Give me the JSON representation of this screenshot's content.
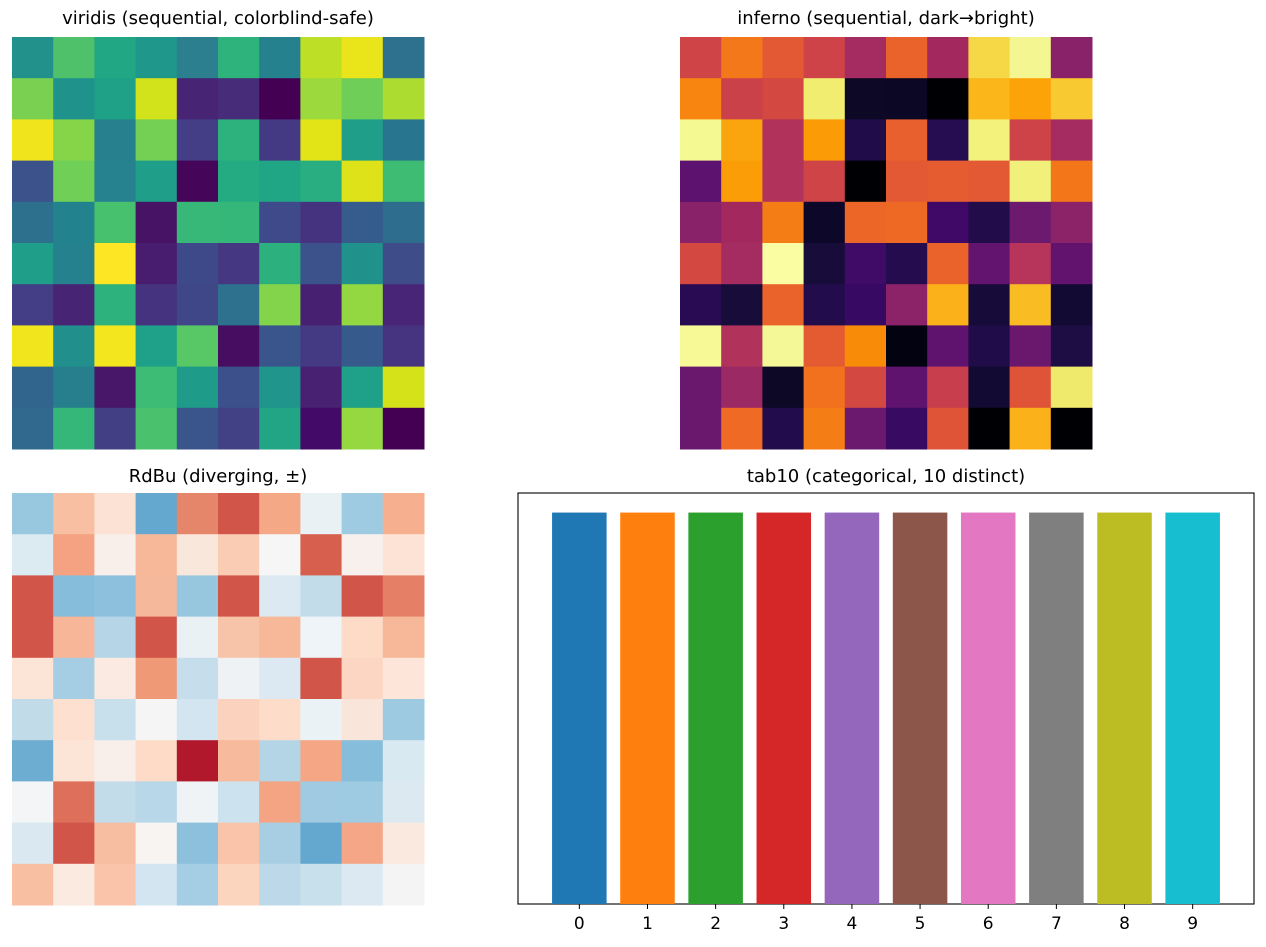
{
  "chart_data": [
    {
      "type": "heatmap",
      "title": "viridis (sequential, colorblind-safe)",
      "colormap": "viridis",
      "rows": [
        [
          "#22918c",
          "#4fc16b",
          "#22a785",
          "#1f988b",
          "#2c7f8e",
          "#2db37b",
          "#26818e",
          "#bddf26",
          "#eae51a",
          "#2d718e"
        ],
        [
          "#7ad151",
          "#20928c",
          "#1fa188",
          "#d2e21b",
          "#482475",
          "#472c7a",
          "#440154",
          "#9bd93c",
          "#6ece58",
          "#addc30"
        ],
        [
          "#f0e51c",
          "#86d549",
          "#27808e",
          "#74d055",
          "#433e85",
          "#2db27d",
          "#443983",
          "#e2e418",
          "#1f9e89",
          "#27758e"
        ],
        [
          "#3b528b",
          "#70cf57",
          "#26828e",
          "#1f9e89",
          "#450559",
          "#25ab82",
          "#21a685",
          "#28ae80",
          "#dde318",
          "#3fbc73"
        ],
        [
          "#2d708e",
          "#22838e",
          "#48c16e",
          "#471365",
          "#37b878",
          "#35b779",
          "#3e4a89",
          "#46337f",
          "#365c8d",
          "#2e6d8e"
        ],
        [
          "#1f9e89",
          "#26818e",
          "#fde725",
          "#481c6e",
          "#3e4989",
          "#453781",
          "#2cb17e",
          "#3b528b",
          "#21918c",
          "#3e4c8a"
        ],
        [
          "#433e85",
          "#482475",
          "#2db27d",
          "#46337f",
          "#3f4788",
          "#2d718e",
          "#84d44b",
          "#482071",
          "#93d741",
          "#482576"
        ],
        [
          "#f1e51d",
          "#21908d",
          "#f4e61e",
          "#1fa088",
          "#58c765",
          "#470d60",
          "#3a548c",
          "#443a83",
          "#375a8c",
          "#463480"
        ],
        [
          "#32658e",
          "#277f8e",
          "#481769",
          "#3cbc74",
          "#1e9c89",
          "#3c508b",
          "#1f958b",
          "#482173",
          "#1fa088",
          "#d5e21a"
        ],
        [
          "#31688e",
          "#35b779",
          "#423f85",
          "#4ac16d",
          "#3a548c",
          "#424186",
          "#21a585",
          "#440a68",
          "#95d840",
          "#440154"
        ]
      ]
    },
    {
      "type": "heatmap",
      "title": "inferno (sequential, dark→bright)",
      "colormap": "inferno",
      "rows": [
        [
          "#cf4446",
          "#f37819",
          "#e35933",
          "#cd4347",
          "#a52c60",
          "#ea632a",
          "#a3285e",
          "#f6d746",
          "#f4f691",
          "#8a226a"
        ],
        [
          "#f8850f",
          "#cb4149",
          "#d44842",
          "#f1ed71",
          "#0c0826",
          "#0b0724",
          "#000004",
          "#fbb61a",
          "#fca309",
          "#f9c932"
        ],
        [
          "#f5f992",
          "#faa50d",
          "#b1325a",
          "#fb9b06",
          "#210c4a",
          "#e8602d",
          "#260c51",
          "#f2f27d",
          "#cd4347",
          "#a52c60"
        ],
        [
          "#5c126e",
          "#fb9d07",
          "#b1325a",
          "#cf4446",
          "#000004",
          "#e35933",
          "#e55c30",
          "#e35933",
          "#f0f07b",
          "#f37719"
        ],
        [
          "#8a226a",
          "#a3285e",
          "#f57d15",
          "#0d0829",
          "#ec6628",
          "#ee6a24",
          "#410967",
          "#220c4a",
          "#6c1a6e",
          "#8c2369"
        ],
        [
          "#d44842",
          "#a52c60",
          "#fbfda2",
          "#170c3a",
          "#400a67",
          "#240c4e",
          "#ea632a",
          "#62146e",
          "#b7355b",
          "#61136e"
        ],
        [
          "#280b53",
          "#170c3a",
          "#ea632a",
          "#230c4c",
          "#380962",
          "#8c2369",
          "#fbb21a",
          "#160b39",
          "#f9bd23",
          "#130a34"
        ],
        [
          "#f6f995",
          "#b1325a",
          "#f4f896",
          "#e45a31",
          "#f88c09",
          "#030211",
          "#5f136e",
          "#1f0c48",
          "#6a176e",
          "#1e0c45"
        ],
        [
          "#6a176e",
          "#9b2964",
          "#0c0826",
          "#f1711f",
          "#d44842",
          "#5f136e",
          "#c83e4d",
          "#120a32",
          "#df5337",
          "#efe96c"
        ],
        [
          "#6a176e",
          "#ef6a24",
          "#230c4c",
          "#f57d15",
          "#6b196e",
          "#380a62",
          "#df5337",
          "#000004",
          "#fbb21a",
          "#000004"
        ]
      ]
    },
    {
      "type": "heatmap",
      "title": "RdBu (diverging, ±)",
      "colormap": "RdBu",
      "rows": [
        [
          "#98c8e0",
          "#f8bfa3",
          "#fbe2d4",
          "#65a8cf",
          "#e58569",
          "#d15549",
          "#f4a886",
          "#eaf1f5",
          "#9ecbe1",
          "#f6af8f"
        ],
        [
          "#dceaf2",
          "#f4a282",
          "#f8efeb",
          "#f7b799",
          "#fae7dc",
          "#fbccb4",
          "#f6f6f6",
          "#d6604d",
          "#f8f0ec",
          "#fce3d6"
        ],
        [
          "#d15549",
          "#86bdda",
          "#8cc0dc",
          "#f6b89b",
          "#97c7df",
          "#d15549",
          "#dce9f2",
          "#c3dcea",
          "#d15549",
          "#e58066"
        ],
        [
          "#d15549",
          "#f7b698",
          "#b6d5e7",
          "#d15549",
          "#e9f1f5",
          "#f8c4a9",
          "#f7b799",
          "#eef4f7",
          "#fddbc7",
          "#f7b799"
        ],
        [
          "#fce4d7",
          "#a5cde3",
          "#fbeae1",
          "#ef9977",
          "#c6deec",
          "#eef2f5",
          "#dce9f2",
          "#d15549",
          "#fcd6c2",
          "#fde6d9"
        ],
        [
          "#c1dbe9",
          "#fde0cf",
          "#c8dfec",
          "#f5f5f5",
          "#d2e5f0",
          "#fbd2bd",
          "#fddcca",
          "#ebf2f5",
          "#fae5da",
          "#9dcae1"
        ],
        [
          "#6eadd2",
          "#fce4d7",
          "#f8efeb",
          "#fddbc7",
          "#b2182b",
          "#f7ba9c",
          "#b4d5e6",
          "#f4a685",
          "#86bdda",
          "#d9e9f1"
        ],
        [
          "#f3f5f6",
          "#de6f5b",
          "#c3dcea",
          "#b8d7e8",
          "#eff3f5",
          "#cce2ee",
          "#f4a483",
          "#9fcae1",
          "#9ecbe1",
          "#dde9f1"
        ],
        [
          "#d9e8f1",
          "#d15549",
          "#f8bea2",
          "#f7f4f2",
          "#8cc0dc",
          "#f9c4a9",
          "#a8cee3",
          "#65a8cf",
          "#f4a687",
          "#fae9df"
        ],
        [
          "#f8bfa3",
          "#fbeae0",
          "#f9c4a9",
          "#d3e5f0",
          "#a5cde3",
          "#fcd5bf",
          "#bcd8e9",
          "#c8dfec",
          "#dce9f2",
          "#f4f4f4"
        ]
      ]
    },
    {
      "type": "bar",
      "title": "tab10 (categorical, 10 distinct)",
      "categories": [
        "0",
        "1",
        "2",
        "3",
        "4",
        "5",
        "6",
        "7",
        "8",
        "9"
      ],
      "values": [
        1,
        1,
        1,
        1,
        1,
        1,
        1,
        1,
        1,
        1
      ],
      "colors": [
        "#1f77b4",
        "#ff7f0e",
        "#2ca02c",
        "#d62728",
        "#9467bd",
        "#8c564b",
        "#e377c2",
        "#7f7f7f",
        "#bcbd22",
        "#17becf"
      ],
      "ylim": [
        0,
        1.05
      ],
      "xlim": [
        -0.9,
        9.9
      ]
    }
  ]
}
